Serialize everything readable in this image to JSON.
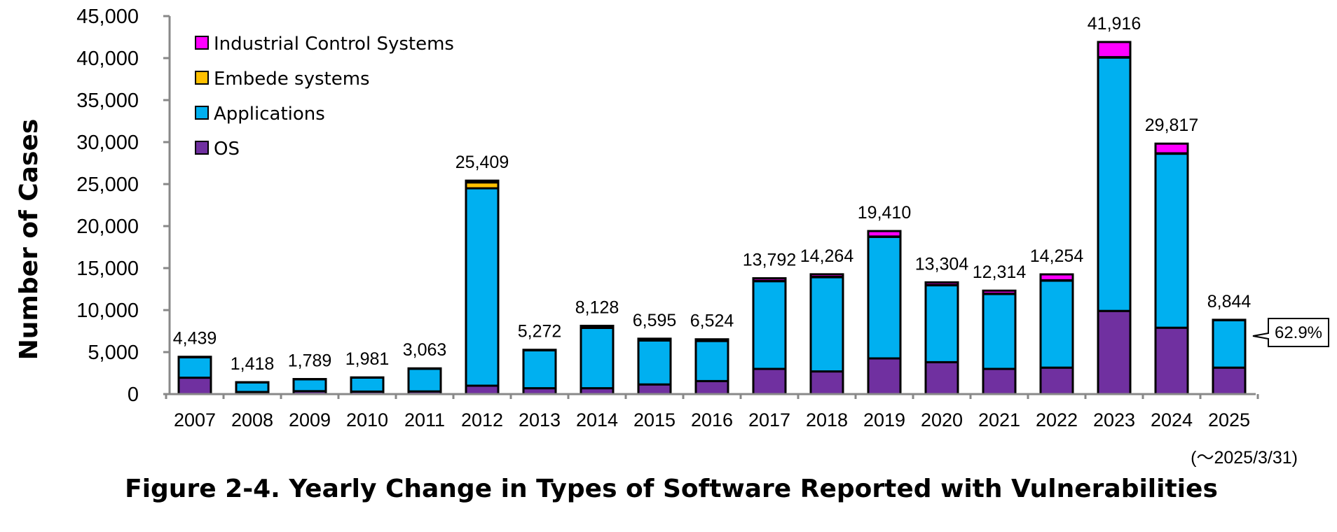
{
  "chart_data": {
    "type": "bar",
    "stacked": true,
    "title": "Figure 2-4. Yearly Change in Types of Software Reported with Vulnerabilities",
    "xlabel": "",
    "ylabel": "Number of Cases",
    "ylim": [
      0,
      45000
    ],
    "yticks": [
      0,
      5000,
      10000,
      15000,
      20000,
      25000,
      30000,
      35000,
      40000,
      45000
    ],
    "ytick_labels": [
      "0",
      "5,000",
      "10,000",
      "15,000",
      "20,000",
      "25,000",
      "30,000",
      "35,000",
      "40,000",
      "45,000"
    ],
    "categories": [
      "2007",
      "2008",
      "2009",
      "2010",
      "2011",
      "2012",
      "2013",
      "2014",
      "2015",
      "2016",
      "2017",
      "2018",
      "2019",
      "2020",
      "2021",
      "2022",
      "2023",
      "2024",
      "2025"
    ],
    "series": [
      {
        "name": "OS",
        "color": "#7030A0",
        "values": [
          1950,
          250,
          350,
          300,
          320,
          1000,
          700,
          700,
          1150,
          1550,
          3000,
          2700,
          4250,
          3800,
          3000,
          3150,
          9900,
          7900,
          3150
        ]
      },
      {
        "name": "Applications",
        "color": "#00B0F0",
        "values": [
          2440,
          1150,
          1420,
          1660,
          2700,
          23500,
          4510,
          7180,
          5235,
          4774,
          10442,
          11214,
          14460,
          9154,
          8914,
          10354,
          30166,
          20717,
          5644
        ]
      },
      {
        "name": "Embede systems",
        "color": "#FFC000",
        "values": [
          20,
          10,
          10,
          10,
          20,
          700,
          30,
          30,
          20,
          20,
          50,
          50,
          50,
          50,
          50,
          50,
          50,
          50,
          20
        ]
      },
      {
        "name": "Industrial Control Systems",
        "color": "#FF00FF",
        "values": [
          29,
          8,
          9,
          11,
          23,
          209,
          32,
          218,
          190,
          180,
          300,
          300,
          650,
          300,
          350,
          700,
          1800,
          1150,
          30
        ]
      }
    ],
    "legend_order": [
      "Industrial Control Systems",
      "Embede systems",
      "Applications",
      "OS"
    ],
    "legend_position": "top-left",
    "totals": [
      "4,439",
      "1,418",
      "1,789",
      "1,981",
      "3,063",
      "25,409",
      "5,272",
      "8,128",
      "6,595",
      "6,524",
      "13,792",
      "14,264",
      "19,410",
      "13,304",
      "12,314",
      "14,254",
      "41,916",
      "29,817",
      "8,844"
    ],
    "annotations": {
      "callout": "62.9%",
      "date_note": "(～2025/3/31)"
    },
    "grid": false
  }
}
